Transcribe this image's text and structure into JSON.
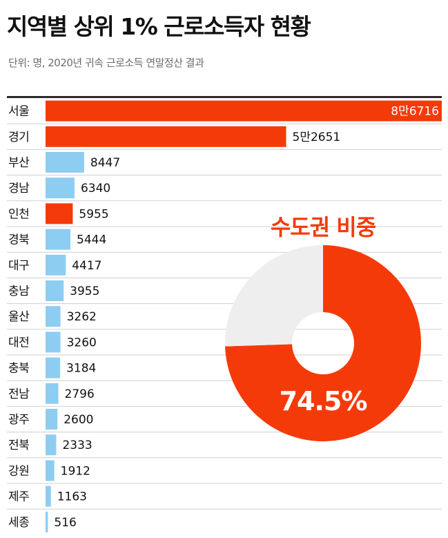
{
  "title": "지역별 상위 1% 근로소득자 현황",
  "subtitle": "단위: 명, 2020년 귀속 근로소득 연말정산 결과",
  "colors": {
    "metro": "#f53a0a",
    "other": "#8ecdf2",
    "pie_rest": "#eeeeee",
    "rule": "#cfcfcf"
  },
  "chart_data": [
    {
      "type": "bar",
      "orientation": "horizontal",
      "categories": [
        "서울",
        "경기",
        "부산",
        "경남",
        "인천",
        "경북",
        "대구",
        "충남",
        "울산",
        "대전",
        "충북",
        "전남",
        "광주",
        "전북",
        "강원",
        "제주",
        "세종"
      ],
      "values": [
        86716,
        52651,
        8447,
        6340,
        5955,
        5444,
        4417,
        3955,
        3262,
        3260,
        3184,
        2796,
        2600,
        2333,
        1912,
        1163,
        516
      ],
      "labels": [
        "8만6716",
        "5만2651",
        "8447",
        "6340",
        "5955",
        "5444",
        "4417",
        "3955",
        "3262",
        "3260",
        "3184",
        "2796",
        "2600",
        "2333",
        "1912",
        "1163",
        "516"
      ],
      "metro": [
        true,
        true,
        false,
        false,
        true,
        false,
        false,
        false,
        false,
        false,
        false,
        false,
        false,
        false,
        false,
        false,
        false
      ],
      "xlim": [
        0,
        86716
      ],
      "grid": false
    },
    {
      "type": "pie",
      "donut": true,
      "title": "수도권 비중",
      "label": "74.5%",
      "slices": [
        {
          "value": 74.5,
          "color": "#f53a0a"
        },
        {
          "value": 25.5,
          "color": "#eeeeee"
        }
      ]
    }
  ]
}
